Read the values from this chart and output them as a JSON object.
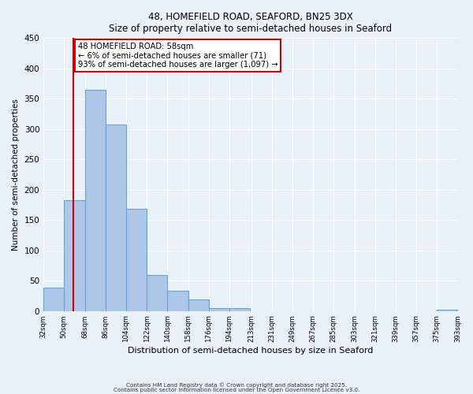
{
  "title_line1": "48, HOMEFIELD ROAD, SEAFORD, BN25 3DX",
  "title_line2": "Size of property relative to semi-detached houses in Seaford",
  "xlabel": "Distribution of semi-detached houses by size in Seaford",
  "ylabel": "Number of semi-detached properties",
  "bin_edges": [
    32,
    50,
    68,
    86,
    104,
    122,
    140,
    158,
    176,
    194,
    213,
    231,
    249,
    267,
    285,
    303,
    321,
    339,
    357,
    375,
    393
  ],
  "bar_heights": [
    38,
    183,
    365,
    307,
    168,
    60,
    33,
    19,
    5,
    5,
    0,
    0,
    0,
    0,
    0,
    0,
    0,
    0,
    0,
    2
  ],
  "bar_color": "#aec6e8",
  "bar_edge_color": "#5a9fd4",
  "ylim": [
    0,
    450
  ],
  "yticks": [
    0,
    50,
    100,
    150,
    200,
    250,
    300,
    350,
    400,
    450
  ],
  "property_size": 58,
  "red_line_color": "#cc0000",
  "annotation_title": "48 HOMEFIELD ROAD: 58sqm",
  "annotation_line1": "← 6% of semi-detached houses are smaller (71)",
  "annotation_line2": "93% of semi-detached houses are larger (1,097) →",
  "annotation_box_color": "#ffffff",
  "annotation_box_edge_color": "#cc0000",
  "footer_line1": "Contains HM Land Registry data © Crown copyright and database right 2025.",
  "footer_line2": "Contains public sector information licensed under the Open Government Licence v3.0.",
  "background_color": "#e8f0f8",
  "plot_background": "#e8f0f8",
  "tick_labels": [
    "32sqm",
    "50sqm",
    "68sqm",
    "86sqm",
    "104sqm",
    "122sqm",
    "140sqm",
    "158sqm",
    "176sqm",
    "194sqm",
    "213sqm",
    "231sqm",
    "249sqm",
    "267sqm",
    "285sqm",
    "303sqm",
    "321sqm",
    "339sqm",
    "357sqm",
    "375sqm",
    "393sqm"
  ]
}
